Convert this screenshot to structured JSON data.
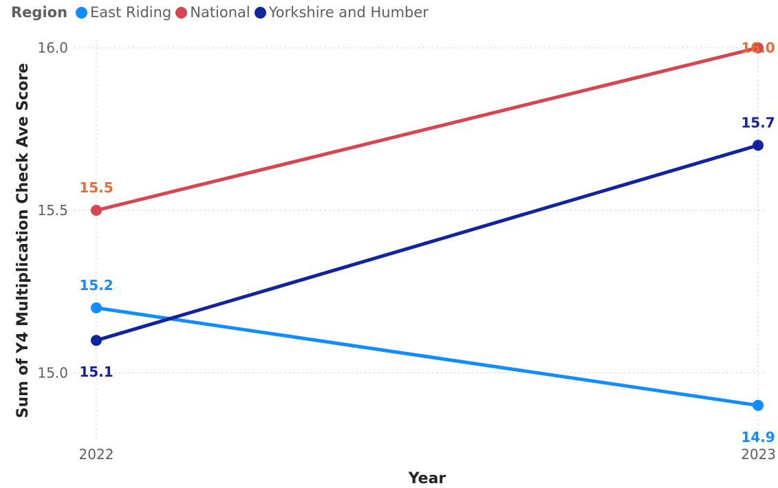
{
  "chart_data": {
    "type": "line",
    "legend_title": "Region",
    "legend_position": "top-left",
    "xlabel": "Year",
    "ylabel": "Sum of Y4 Multiplication Check Ave Score",
    "categories": [
      "2022",
      "2023"
    ],
    "ylim": [
      14.85,
      16.05
    ],
    "y_ticks": [
      "15.0",
      "15.5",
      "16.0"
    ],
    "grid": true,
    "series": [
      {
        "name": "East Riding",
        "color": "#118dff",
        "label_color": "#118dff",
        "values": [
          15.2,
          14.9
        ],
        "labels": [
          "15.2",
          "14.9"
        ],
        "label_pos": [
          "above",
          "below"
        ]
      },
      {
        "name": "National",
        "color": "#d64550",
        "label_color": "#e66c37",
        "values": [
          15.5,
          16.0
        ],
        "labels": [
          "15.5",
          "16.0"
        ],
        "label_pos": [
          "above",
          "center"
        ]
      },
      {
        "name": "Yorkshire and Humber",
        "color": "#12239e",
        "label_color": "#12239e",
        "values": [
          15.1,
          15.7
        ],
        "labels": [
          "15.1",
          "15.7"
        ],
        "label_pos": [
          "below",
          "above"
        ]
      }
    ]
  }
}
